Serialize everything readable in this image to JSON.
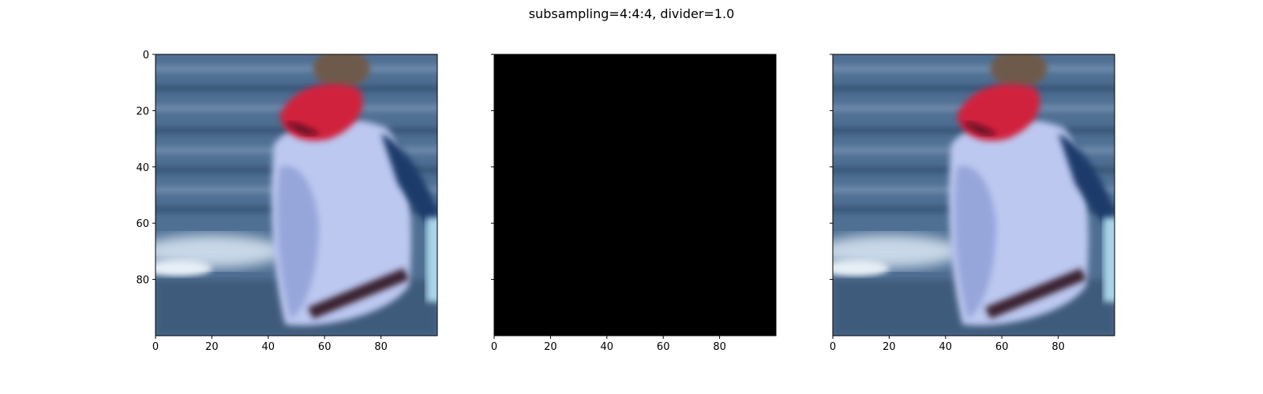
{
  "figure": {
    "suptitle": "subsampling=4:4:4, divider=1.0"
  },
  "chart_data": [
    {
      "type": "image",
      "content": "photo crop: person with red hood and light blue/white jacket beside water",
      "xticks": [
        "0",
        "20",
        "40",
        "60",
        "80"
      ],
      "yticks": [
        "0",
        "20",
        "40",
        "60",
        "80"
      ],
      "xlim": [
        0,
        100
      ],
      "ylim": [
        100,
        0
      ],
      "colors": {
        "water": "#4f6f93",
        "water_light": "#c9d8e8",
        "jacket": "#bcc8f0",
        "jacket_shadow": "#7f90cc",
        "hood": "#d0243c",
        "hair": "#6e5a4c",
        "dark_stripe": "#1f3a6a"
      }
    },
    {
      "type": "image",
      "content": "all black",
      "xticks": [
        "0",
        "20",
        "40",
        "60",
        "80"
      ],
      "yticks": [],
      "xlim": [
        0,
        100
      ],
      "ylim": [
        100,
        0
      ],
      "fill": "#000000"
    },
    {
      "type": "image",
      "content": "photo crop: person with red hood and light blue/white jacket beside water",
      "xticks": [
        "0",
        "20",
        "40",
        "60",
        "80"
      ],
      "yticks": [],
      "xlim": [
        0,
        100
      ],
      "ylim": [
        100,
        0
      ],
      "colors": {
        "water": "#4f6f93",
        "water_light": "#c9d8e8",
        "jacket": "#bcc8f0",
        "jacket_shadow": "#7f90cc",
        "hood": "#d0243c",
        "hair": "#6e5a4c",
        "dark_stripe": "#1f3a6a"
      }
    }
  ]
}
